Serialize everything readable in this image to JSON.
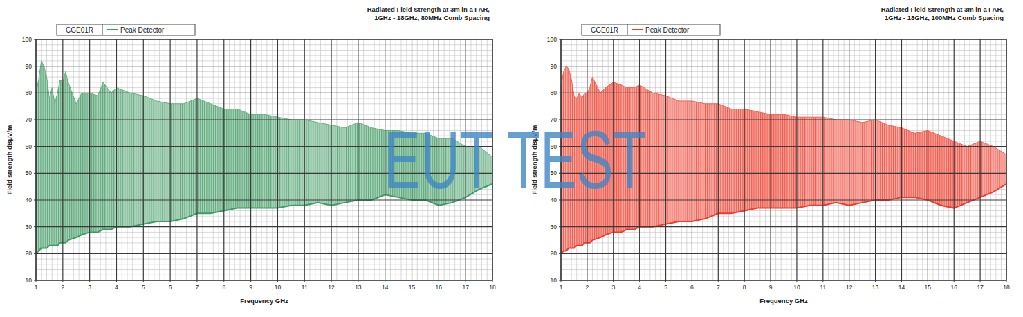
{
  "watermark": "EUT TEST",
  "chart_data": [
    {
      "type": "area",
      "title": "Radiated Field Strength at 3m in a FAR,",
      "subtitle": "1GHz - 18GHz, 80MHz Comb Spacing",
      "legend_title": "CGE01R",
      "legend": "top-left",
      "x_label": "Frequency GHz",
      "y_label": "Field strength dBµV/m",
      "xlim": [
        1,
        18
      ],
      "xticks": [
        1,
        2,
        3,
        4,
        5,
        6,
        7,
        8,
        9,
        10,
        11,
        12,
        13,
        14,
        15,
        16,
        17,
        18
      ],
      "ylim": [
        10,
        100
      ],
      "yticks": [
        10,
        20,
        30,
        40,
        50,
        60,
        70,
        80,
        90,
        100
      ],
      "grid": true,
      "x": [
        1,
        1.1,
        1.2,
        1.3,
        1.4,
        1.5,
        1.6,
        1.7,
        1.8,
        1.9,
        2,
        2.1,
        2.2,
        2.5,
        2.7,
        3,
        3.3,
        3.5,
        3.8,
        4,
        4.5,
        5,
        5.5,
        6,
        6.5,
        7,
        7.5,
        8,
        8.5,
        9,
        9.5,
        10,
        10.5,
        11,
        11.5,
        12,
        12.5,
        13,
        13.5,
        14,
        14.5,
        15,
        15.5,
        16,
        16.5,
        17,
        17.5,
        18
      ],
      "series": [
        {
          "name": "Peak Detector",
          "color": "#3f9a63",
          "values": [
            80,
            85,
            92,
            90,
            86,
            78,
            82,
            76,
            80,
            85,
            84,
            88,
            84,
            76,
            80,
            80,
            79,
            84,
            80,
            82,
            80,
            79,
            77,
            76,
            76,
            78,
            76,
            74,
            74,
            72,
            72,
            71,
            70,
            70,
            69,
            68,
            67,
            69,
            67,
            66,
            66,
            65,
            65,
            63,
            63,
            60,
            60,
            56
          ],
          "lower": [
            20,
            21,
            22,
            22,
            22,
            23,
            23,
            23,
            23,
            24,
            24,
            24,
            25,
            26,
            27,
            28,
            28,
            29,
            29,
            30,
            30,
            31,
            32,
            32,
            33,
            35,
            35,
            36,
            37,
            37,
            37,
            37,
            38,
            38,
            39,
            38,
            39,
            40,
            40,
            42,
            41,
            40,
            40,
            38,
            39,
            41,
            44,
            46
          ]
        }
      ]
    },
    {
      "type": "area",
      "title": "Radiated Field Strength at 3m in a FAR,",
      "subtitle": "1GHz - 18GHz, 100MHz Comb Spacing",
      "legend_title": "CGE01R",
      "legend": "top-left",
      "x_label": "Frequency GHz",
      "y_label": "Field strength dBµV/m",
      "xlim": [
        1,
        18
      ],
      "xticks": [
        1,
        2,
        3,
        4,
        5,
        6,
        7,
        8,
        9,
        10,
        11,
        12,
        13,
        14,
        15,
        16,
        17,
        18
      ],
      "ylim": [
        10,
        100
      ],
      "yticks": [
        10,
        20,
        30,
        40,
        50,
        60,
        70,
        80,
        90,
        100
      ],
      "grid": true,
      "x": [
        1,
        1.1,
        1.2,
        1.3,
        1.4,
        1.5,
        1.6,
        1.7,
        1.8,
        1.9,
        2,
        2.1,
        2.2,
        2.5,
        2.7,
        3,
        3.3,
        3.5,
        3.8,
        4,
        4.5,
        5,
        5.5,
        6,
        6.5,
        7,
        7.5,
        8,
        8.5,
        9,
        9.5,
        10,
        10.5,
        11,
        11.5,
        12,
        12.5,
        13,
        13.5,
        14,
        14.5,
        15,
        15.5,
        16,
        16.5,
        17,
        17.5,
        18
      ],
      "series": [
        {
          "name": "Peak Detector",
          "color": "#ee3b2a",
          "values": [
            82,
            88,
            90,
            89,
            85,
            79,
            78,
            80,
            78,
            80,
            80,
            82,
            86,
            80,
            82,
            84,
            83,
            82,
            82,
            83,
            80,
            79,
            77,
            77,
            76,
            76,
            74,
            74,
            73,
            72,
            72,
            71,
            71,
            71,
            70,
            70,
            69,
            70,
            68,
            67,
            65,
            66,
            64,
            62,
            60,
            62,
            60,
            57
          ],
          "lower": [
            20,
            21,
            21,
            22,
            22,
            22,
            23,
            23,
            23,
            24,
            24,
            24,
            25,
            26,
            27,
            28,
            28,
            29,
            29,
            30,
            30,
            31,
            32,
            32,
            33,
            35,
            35,
            36,
            37,
            37,
            37,
            37,
            38,
            38,
            39,
            38,
            39,
            40,
            40,
            41,
            41,
            40,
            38,
            37,
            39,
            41,
            43,
            46
          ]
        }
      ]
    }
  ]
}
